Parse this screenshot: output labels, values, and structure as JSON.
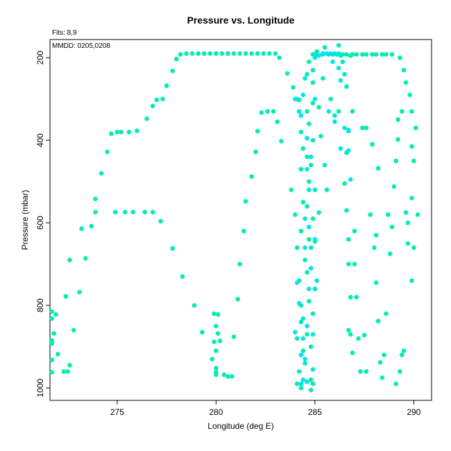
{
  "chart_data": {
    "type": "scatter",
    "title": "Pressure vs. Longitude",
    "fits_label": "Fits: 8,9",
    "mmdd_label": "MMDD: 0205,0208",
    "xlabel": "Longitude (deg E)",
    "ylabel": "Pressure (mbar)",
    "xlim": [
      271.6,
      290.9
    ],
    "ylim": [
      1030,
      156
    ],
    "y_reversed": true,
    "x_ticks": [
      275,
      280,
      285,
      290
    ],
    "y_ticks": [
      200,
      400,
      600,
      800,
      1000
    ],
    "x_tick_labels": [
      "275",
      "280",
      "285",
      "290"
    ],
    "y_tick_labels": [
      "200",
      "400",
      "600",
      "800",
      "1000"
    ],
    "grid": false,
    "legend": "none",
    "series": [
      {
        "color": "#00eeb0",
        "points": [
          [
            271.7,
            815
          ],
          [
            271.7,
            832
          ],
          [
            271.8,
            868
          ],
          [
            271.9,
            822
          ],
          [
            271.7,
            885
          ],
          [
            271.7,
            892
          ],
          [
            271.7,
            932
          ],
          [
            271.7,
            962
          ],
          [
            272.0,
            918
          ],
          [
            272.3,
            960
          ],
          [
            272.5,
            960
          ],
          [
            272.6,
            945
          ],
          [
            272.4,
            778
          ],
          [
            272.8,
            860
          ],
          [
            272.6,
            690
          ],
          [
            273.1,
            768
          ],
          [
            273.2,
            614
          ],
          [
            273.4,
            686
          ],
          [
            273.7,
            608
          ],
          [
            273.9,
            542
          ],
          [
            273.9,
            574
          ],
          [
            274.2,
            480
          ],
          [
            274.5,
            428
          ],
          [
            274.7,
            384
          ],
          [
            275.0,
            380
          ],
          [
            275.2,
            380
          ],
          [
            275.6,
            380
          ],
          [
            276.0,
            377
          ],
          [
            274.9,
            574
          ],
          [
            275.4,
            574
          ],
          [
            275.8,
            574
          ],
          [
            276.4,
            574
          ],
          [
            276.8,
            574
          ],
          [
            276.5,
            348
          ],
          [
            276.8,
            317
          ],
          [
            277.0,
            302
          ],
          [
            277.3,
            300
          ],
          [
            277.5,
            268
          ],
          [
            277.2,
            596
          ],
          [
            277.8,
            232
          ],
          [
            278.0,
            203
          ],
          [
            278.2,
            192
          ],
          [
            277.8,
            662
          ],
          [
            278.3,
            730
          ],
          [
            278.9,
            800
          ],
          [
            279.3,
            865
          ],
          [
            279.8,
            930
          ],
          [
            280.0,
            910
          ],
          [
            279.9,
            820
          ],
          [
            280.1,
            822
          ],
          [
            280.0,
            850
          ],
          [
            280.1,
            868
          ],
          [
            279.9,
            888
          ],
          [
            280.0,
            952
          ],
          [
            280.0,
            962
          ],
          [
            280.0,
            968
          ],
          [
            280.2,
            886
          ],
          [
            280.4,
            968
          ],
          [
            280.6,
            972
          ],
          [
            280.8,
            972
          ],
          [
            280.9,
            876
          ],
          [
            281.1,
            785
          ],
          [
            281.2,
            700
          ],
          [
            281.4,
            620
          ],
          [
            281.5,
            548
          ],
          [
            281.8,
            488
          ],
          [
            282.0,
            428
          ],
          [
            282.1,
            378
          ],
          [
            282.3,
            333
          ],
          [
            282.6,
            330
          ],
          [
            282.9,
            330
          ],
          [
            283.1,
            355
          ],
          [
            283.3,
            402
          ],
          [
            283.8,
            520
          ],
          [
            283.6,
            238
          ],
          [
            283.9,
            272
          ],
          [
            284.1,
            300
          ],
          [
            284.2,
            302
          ],
          [
            283.2,
            200
          ],
          [
            278.5,
            190
          ],
          [
            278.8,
            190
          ],
          [
            279.1,
            190
          ],
          [
            279.4,
            190
          ],
          [
            279.7,
            190
          ],
          [
            280.0,
            190
          ],
          [
            280.3,
            190
          ],
          [
            280.6,
            190
          ],
          [
            280.9,
            190
          ],
          [
            281.2,
            190
          ],
          [
            281.5,
            190
          ],
          [
            281.8,
            190
          ],
          [
            282.1,
            190
          ],
          [
            282.4,
            190
          ],
          [
            282.7,
            190
          ],
          [
            283.0,
            190
          ],
          [
            284.0,
            580
          ],
          [
            284.1,
            660
          ],
          [
            284.2,
            740
          ],
          [
            284.3,
            800
          ],
          [
            284.1,
            880
          ],
          [
            284.2,
            960
          ],
          [
            284.1,
            990
          ],
          [
            284.3,
            1000
          ],
          [
            284.3,
            380
          ],
          [
            284.4,
            420
          ],
          [
            284.3,
            470
          ],
          [
            284.4,
            550
          ],
          [
            284.3,
            620
          ],
          [
            284.5,
            690
          ],
          [
            284.3,
            840
          ],
          [
            284.4,
            910
          ],
          [
            284.6,
            330
          ],
          [
            284.7,
            360
          ],
          [
            284.6,
            440
          ],
          [
            284.7,
            500
          ],
          [
            284.6,
            560
          ],
          [
            284.7,
            640
          ],
          [
            284.6,
            720
          ],
          [
            284.7,
            790
          ],
          [
            284.6,
            870
          ],
          [
            284.5,
            940
          ],
          [
            284.6,
            985
          ],
          [
            284.8,
            980
          ],
          [
            284.9,
            260
          ],
          [
            284.9,
            310
          ],
          [
            284.9,
            400
          ],
          [
            284.8,
            460
          ],
          [
            285.0,
            520
          ],
          [
            284.9,
            590
          ],
          [
            284.8,
            660
          ],
          [
            285.0,
            760
          ],
          [
            284.9,
            820
          ],
          [
            284.8,
            900
          ],
          [
            284.9,
            990
          ],
          [
            284.8,
            1005
          ],
          [
            284.6,
            240
          ],
          [
            284.7,
            210
          ],
          [
            284.9,
            230
          ],
          [
            285.1,
            185
          ],
          [
            285.2,
            320
          ],
          [
            285.3,
            390
          ],
          [
            285.4,
            250
          ],
          [
            285.5,
            460
          ],
          [
            285.6,
            520
          ],
          [
            285.2,
            575
          ],
          [
            285.0,
            645
          ],
          [
            285.8,
            300
          ],
          [
            286.0,
            340
          ],
          [
            286.2,
            330
          ],
          [
            286.4,
            210
          ],
          [
            286.5,
            240
          ],
          [
            286.6,
            270
          ],
          [
            286.7,
            378
          ],
          [
            286.6,
            430
          ],
          [
            286.5,
            505
          ],
          [
            286.6,
            570
          ],
          [
            286.7,
            640
          ],
          [
            286.7,
            700
          ],
          [
            286.8,
            780
          ],
          [
            286.7,
            860
          ],
          [
            286.8,
            870
          ],
          [
            286.9,
            915
          ],
          [
            287.0,
            700
          ],
          [
            287.1,
            780
          ],
          [
            287.2,
            880
          ],
          [
            287.3,
            960
          ],
          [
            287.5,
            872
          ],
          [
            287.6,
            960
          ],
          [
            287.8,
            580
          ],
          [
            287.9,
            410
          ],
          [
            288.0,
            660
          ],
          [
            288.1,
            745
          ],
          [
            288.2,
            468
          ],
          [
            288.2,
            838
          ],
          [
            288.3,
            938
          ],
          [
            288.4,
            975
          ],
          [
            288.5,
            920
          ],
          [
            288.6,
            820
          ],
          [
            288.7,
            580
          ],
          [
            288.9,
            610
          ],
          [
            289.0,
            512
          ],
          [
            289.1,
            450
          ],
          [
            289.2,
            398
          ],
          [
            289.4,
            920
          ],
          [
            289.5,
            910
          ],
          [
            289.6,
            260
          ],
          [
            289.8,
            290
          ],
          [
            289.9,
            330
          ],
          [
            289.7,
            650
          ],
          [
            289.9,
            740
          ],
          [
            290.0,
            660
          ],
          [
            290.2,
            580
          ],
          [
            289.1,
            990
          ],
          [
            289.3,
            960
          ],
          [
            289.2,
            350
          ],
          [
            289.4,
            330
          ],
          [
            289.6,
            575
          ],
          [
            289.7,
            600
          ],
          [
            289.9,
            540
          ],
          [
            290.0,
            450
          ],
          [
            290.1,
            370
          ],
          [
            289.9,
            415
          ],
          [
            288.8,
            675
          ],
          [
            288.1,
            630
          ],
          [
            287.6,
            370
          ],
          [
            287.4,
            370
          ],
          [
            286.9,
            330
          ],
          [
            286.3,
            195
          ],
          [
            286.8,
            195
          ],
          [
            287.0,
            620
          ],
          [
            286.2,
            170
          ],
          [
            285.5,
            175
          ],
          [
            289.3,
            200
          ],
          [
            289.5,
            230
          ],
          [
            284.9,
            192
          ],
          [
            285.4,
            192
          ],
          [
            285.9,
            192
          ],
          [
            286.4,
            192
          ],
          [
            286.9,
            192
          ],
          [
            287.4,
            192
          ],
          [
            287.9,
            192
          ],
          [
            288.4,
            192
          ],
          [
            288.9,
            192
          ],
          [
            285.1,
            192
          ],
          [
            285.7,
            192
          ],
          [
            286.1,
            192
          ],
          [
            286.6,
            192
          ],
          [
            287.1,
            192
          ],
          [
            287.6,
            192
          ],
          [
            288.1,
            192
          ],
          [
            288.6,
            192
          ]
        ]
      },
      {
        "color": "#00e5f0",
        "points": [
          [
            284.0,
            300
          ],
          [
            284.2,
            330
          ],
          [
            284.3,
            340
          ],
          [
            284.1,
            745
          ],
          [
            284.2,
            795
          ],
          [
            284.4,
            832
          ],
          [
            284.0,
            865
          ],
          [
            284.3,
            920
          ],
          [
            284.5,
            930
          ],
          [
            284.4,
            980
          ],
          [
            284.6,
            985
          ],
          [
            284.6,
            395
          ],
          [
            284.6,
            470
          ],
          [
            284.7,
            520
          ],
          [
            284.7,
            610
          ],
          [
            284.5,
            660
          ],
          [
            284.8,
            710
          ],
          [
            284.7,
            760
          ],
          [
            284.6,
            850
          ],
          [
            285.0,
            200
          ],
          [
            285.2,
            195
          ],
          [
            285.4,
            190
          ],
          [
            285.6,
            190
          ],
          [
            285.8,
            190
          ],
          [
            286.0,
            190
          ],
          [
            286.2,
            190
          ],
          [
            285.9,
            210
          ],
          [
            285.0,
            300
          ],
          [
            285.0,
            640
          ],
          [
            284.9,
            955
          ],
          [
            284.5,
            250
          ],
          [
            284.4,
            290
          ],
          [
            284.8,
            440
          ],
          [
            284.5,
            590
          ],
          [
            284.9,
            870
          ],
          [
            285.1,
            740
          ],
          [
            284.4,
            880
          ],
          [
            284.3,
            990
          ],
          [
            286.7,
            375
          ],
          [
            286.7,
            425
          ],
          [
            286.8,
            495
          ],
          [
            286.2,
            225
          ],
          [
            286.0,
            355
          ],
          [
            286.3,
            420
          ],
          [
            285.7,
            330
          ],
          [
            286.3,
            255
          ],
          [
            286.5,
            370
          ]
        ]
      }
    ]
  }
}
